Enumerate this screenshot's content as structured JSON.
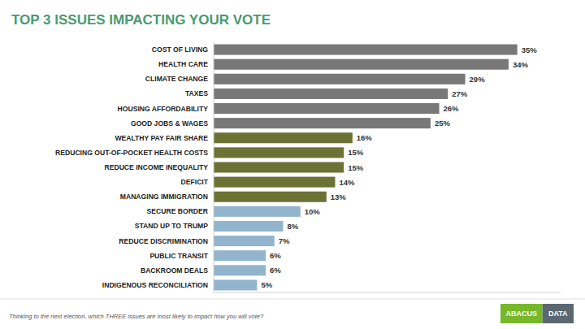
{
  "chart_data": {
    "type": "bar",
    "orientation": "horizontal",
    "title": "TOP 3 ISSUES IMPACTING YOUR VOTE",
    "categories": [
      "COST OF LIVING",
      "HEALTH CARE",
      "CLIMATE CHANGE",
      "TAXES",
      "HOUSING AFFORDABILITY",
      "GOOD JOBS & WAGES",
      "WEALTHY PAY FAIR SHARE",
      "REDUCING OUT-OF-POCKET HEALTH COSTS",
      "REDUCE INCOME INEQUALITY",
      "DEFICIT",
      "MANAGING IMMIGRATION",
      "SECURE BORDER",
      "STAND UP TO TRUMP",
      "REDUCE DISCRIMINATION",
      "PUBLIC TRANSIT",
      "BACKROOM DEALS",
      "INDIGENOUS RECONCILIATION"
    ],
    "values": [
      35,
      34,
      29,
      27,
      26,
      25,
      16,
      15,
      15,
      14,
      13,
      10,
      8,
      7,
      6,
      6,
      5
    ],
    "value_labels": [
      "35%",
      "34%",
      "29%",
      "27%",
      "26%",
      "25%",
      "16%",
      "15%",
      "15%",
      "14%",
      "13%",
      "10%",
      "8%",
      "7%",
      "6%",
      "6%",
      "5%"
    ],
    "colors": [
      "#787878",
      "#787878",
      "#787878",
      "#787878",
      "#787878",
      "#787878",
      "#6b7234",
      "#6b7234",
      "#6b7234",
      "#6b7234",
      "#6b7234",
      "#92b4cc",
      "#92b4cc",
      "#92b4cc",
      "#92b4cc",
      "#92b4cc",
      "#92b4cc"
    ],
    "xlim": [
      0,
      40
    ],
    "data_labels": true,
    "tick_labels": "y",
    "grid": false,
    "annotations": [
      "Thinking to the next election, which THREE issues are most likely to impact how you will vote?",
      "ABACUS",
      "DATA"
    ]
  }
}
